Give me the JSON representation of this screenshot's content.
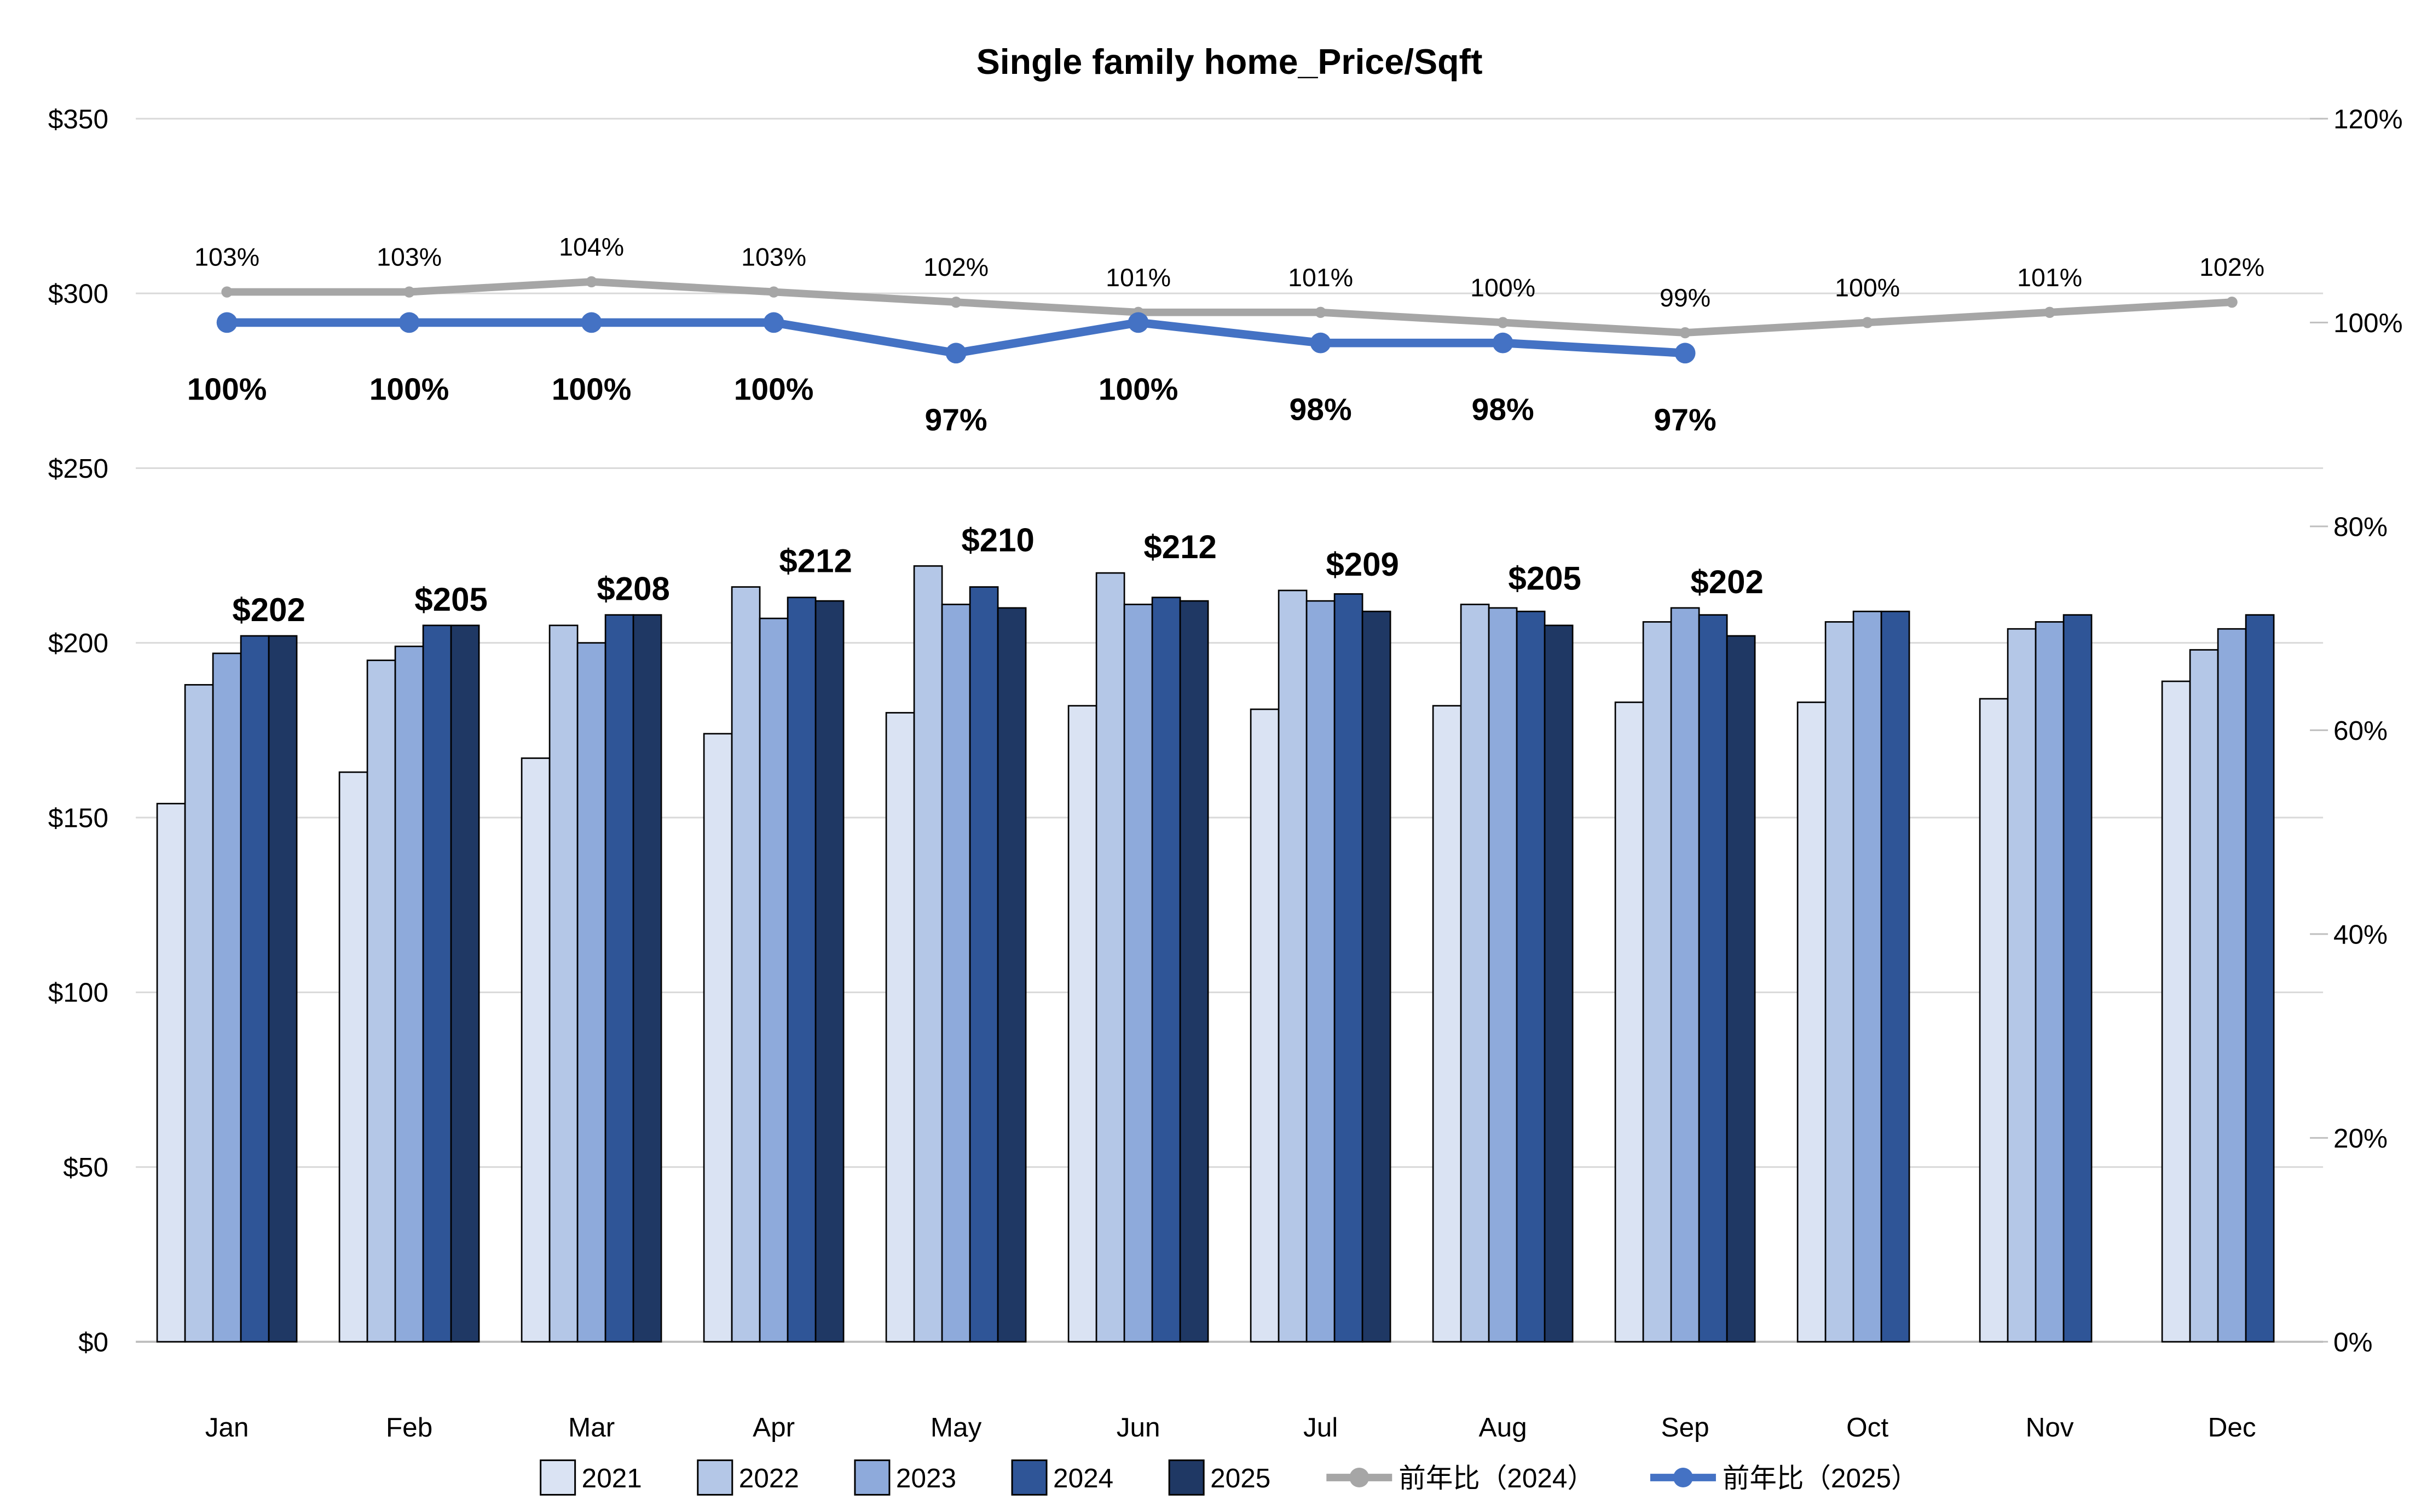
{
  "title": "Single family home_Price/Sqft",
  "colors": {
    "bar2021": "#DAE3F3",
    "bar2022": "#B4C7E7",
    "bar2023": "#8EAADB",
    "bar2024": "#2F5597",
    "bar2025": "#1F3864",
    "line2024": "#A6A6A6",
    "line2025": "#4472C4",
    "barBorder": "#000000",
    "gridline": "#D9D9D9",
    "axisLine": "#BFBFBF",
    "labelText": "#000000"
  },
  "chart_data": {
    "type": "bar+line combo",
    "categories": [
      "Jan",
      "Feb",
      "Mar",
      "Apr",
      "May",
      "Jun",
      "Jul",
      "Aug",
      "Sep",
      "Oct",
      "Nov",
      "Dec"
    ],
    "left_axis": {
      "title_format": "$",
      "min": 0,
      "max": 350,
      "step": 50,
      "tick_labels": [
        "$0",
        "$50",
        "$100",
        "$150",
        "$200",
        "$250",
        "$300",
        "$350"
      ]
    },
    "right_axis": {
      "title_format": "%",
      "min": 0,
      "max": 120,
      "step": 20,
      "tick_labels": [
        "0%",
        "20%",
        "40%",
        "60%",
        "80%",
        "100%",
        "120%"
      ]
    },
    "grid": "horizontal-on",
    "legend_position": "bottom",
    "series": [
      {
        "name": "2021",
        "type": "bar",
        "values": [
          154,
          163,
          167,
          174,
          180,
          182,
          181,
          182,
          183,
          183,
          184,
          189
        ]
      },
      {
        "name": "2022",
        "type": "bar",
        "values": [
          188,
          195,
          205,
          216,
          222,
          220,
          215,
          211,
          206,
          206,
          204,
          198
        ]
      },
      {
        "name": "2023",
        "type": "bar",
        "values": [
          197,
          199,
          200,
          207,
          211,
          211,
          212,
          210,
          210,
          209,
          206,
          204
        ]
      },
      {
        "name": "2024",
        "type": "bar",
        "values": [
          202,
          205,
          208,
          213,
          216,
          213,
          214,
          209,
          208,
          209,
          208,
          208
        ]
      },
      {
        "name": "2025",
        "type": "bar",
        "values": [
          202,
          205,
          208,
          212,
          210,
          212,
          209,
          205,
          202,
          null,
          null,
          null
        ],
        "data_labels": [
          "$202",
          "$205",
          "$208",
          "$212",
          "$210",
          "$212",
          "$209",
          "$205",
          "$202",
          null,
          null,
          null
        ]
      },
      {
        "name": "前年比（2024）",
        "type": "line",
        "values": [
          103,
          103,
          104,
          103,
          102,
          101,
          101,
          100,
          99,
          100,
          101,
          102
        ],
        "data_labels": [
          "103%",
          "103%",
          "104%",
          "103%",
          "102%",
          "101%",
          "101%",
          "100%",
          "99%",
          "100%",
          "101%",
          "102%"
        ]
      },
      {
        "name": "前年比（2025）",
        "type": "line",
        "values": [
          100,
          100,
          100,
          100,
          97,
          100,
          98,
          98,
          97,
          null,
          null,
          null
        ],
        "data_labels": [
          "100%",
          "100%",
          "100%",
          "100%",
          "97%",
          "100%",
          "98%",
          "98%",
          "97%",
          null,
          null,
          null
        ]
      }
    ]
  },
  "legend": [
    {
      "label": "2021",
      "kind": "swatch",
      "color": "#DAE3F3"
    },
    {
      "label": "2022",
      "kind": "swatch",
      "color": "#B4C7E7"
    },
    {
      "label": "2023",
      "kind": "swatch",
      "color": "#8EAADB"
    },
    {
      "label": "2024",
      "kind": "swatch",
      "color": "#2F5597"
    },
    {
      "label": "2025",
      "kind": "swatch",
      "color": "#1F3864"
    },
    {
      "label": "前年比（2024）",
      "kind": "line",
      "color": "#A6A6A6"
    },
    {
      "label": "前年比（2025）",
      "kind": "line",
      "color": "#4472C4"
    }
  ]
}
